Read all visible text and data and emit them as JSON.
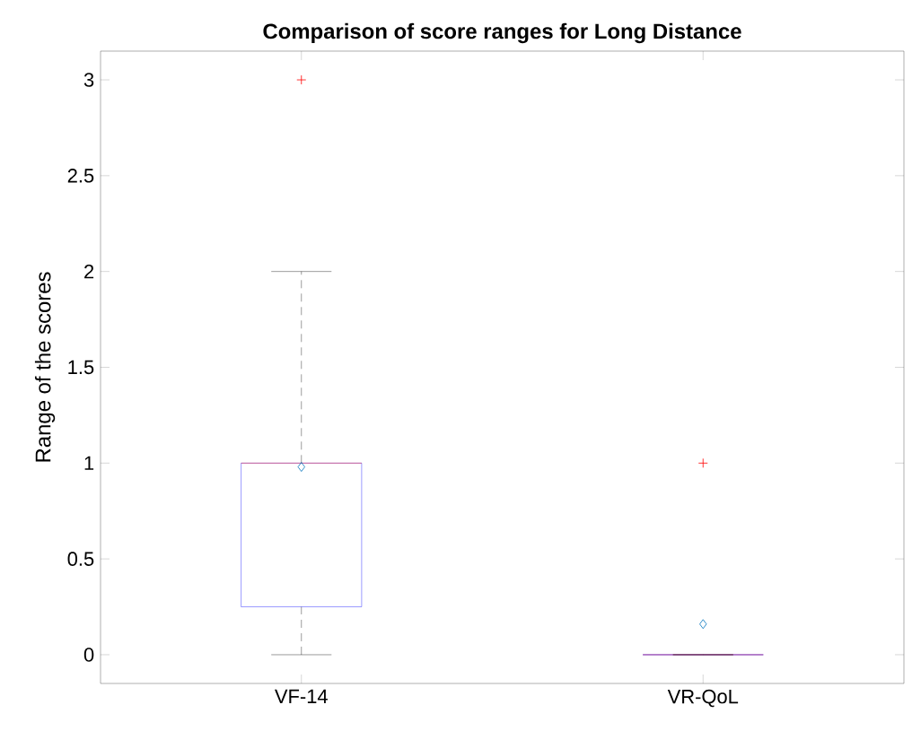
{
  "chart_data": {
    "type": "box",
    "title": "Comparison of score ranges for Long Distance",
    "ylabel": "Range of the scores",
    "categories": [
      "VF-14",
      "VR-QoL"
    ],
    "series": [
      {
        "color": "#0000ff",
        "boxes": [
          {
            "low": 0,
            "q1": 0.25,
            "median": 1,
            "q3": 1,
            "high": 2,
            "mean": 0.98,
            "outliers": [
              3
            ]
          },
          {
            "low": 0,
            "q1": 0,
            "median": 0,
            "q3": 0,
            "high": 0,
            "mean": 0.16,
            "outliers": [
              1
            ]
          }
        ]
      }
    ],
    "ylim": [
      -0.15,
      3.15
    ],
    "yticks": [
      0,
      0.5,
      1,
      1.5,
      2,
      2.5,
      3
    ],
    "grid": false
  }
}
